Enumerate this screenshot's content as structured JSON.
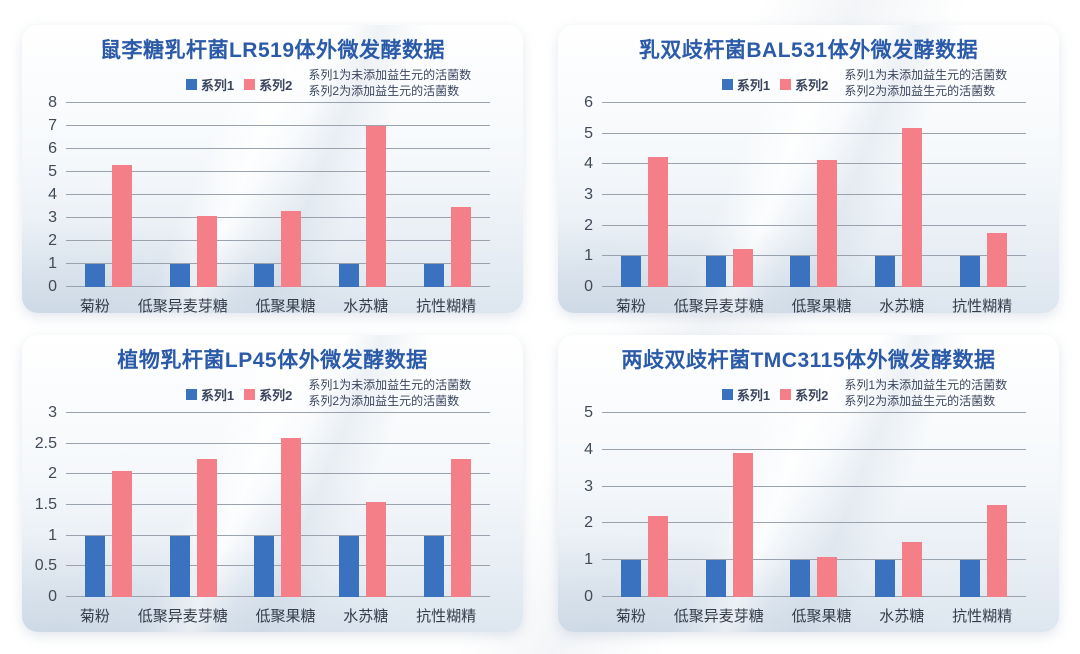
{
  "colors": {
    "series1": "#3b72bf",
    "series2": "#f57f89",
    "title_text": "#2a5aa8",
    "gridline": "#9aa2ad",
    "axis_text": "#424a56",
    "legend_text": "#3b465e",
    "card_bg_bottom": "#dde6ef",
    "page_bg": "#ffffff"
  },
  "chart_data": [
    {
      "type": "bar",
      "title": "鼠李糖乳杆菌LR519体外微发酵数据",
      "categories": [
        "菊粉",
        "低聚异麦芽糖",
        "低聚果糖",
        "水苏糖",
        "抗性糊精"
      ],
      "series": [
        {
          "name": "系列1",
          "values": [
            1,
            1,
            1,
            1,
            1
          ]
        },
        {
          "name": "系列2",
          "values": [
            5.3,
            3.1,
            3.3,
            7,
            3.5
          ]
        }
      ],
      "annotation": [
        "系列1为未添加益生元的活菌数",
        "系列2为添加益生元的活菌数"
      ],
      "xlabel": "",
      "ylabel": "",
      "ylim": [
        0,
        8
      ],
      "ytick_step": 1,
      "grid": true,
      "legend_position": "top"
    },
    {
      "type": "bar",
      "title": "乳双歧杆菌BAL531体外微发酵数据",
      "categories": [
        "菊粉",
        "低聚异麦芽糖",
        "低聚果糖",
        "水苏糖",
        "抗性糊精"
      ],
      "series": [
        {
          "name": "系列1",
          "values": [
            1,
            1,
            1,
            1,
            1
          ]
        },
        {
          "name": "系列2",
          "values": [
            4.25,
            1.25,
            4.15,
            5.2,
            1.75
          ]
        }
      ],
      "annotation": [
        "系列1为未添加益生元的活菌数",
        "系列2为添加益生元的活菌数"
      ],
      "xlabel": "",
      "ylabel": "",
      "ylim": [
        0,
        6
      ],
      "ytick_step": 1,
      "grid": true,
      "legend_position": "top"
    },
    {
      "type": "bar",
      "title": "植物乳杆菌LP45体外微发酵数据",
      "categories": [
        "菊粉",
        "低聚异麦芽糖",
        "低聚果糖",
        "水苏糖",
        "抗性糊精"
      ],
      "series": [
        {
          "name": "系列1",
          "values": [
            1,
            1,
            1,
            1,
            1
          ]
        },
        {
          "name": "系列2",
          "values": [
            2.05,
            2.25,
            2.6,
            1.55,
            2.25
          ]
        }
      ],
      "annotation": [
        "系列1为未添加益生元的活菌数",
        "系列2为添加益生元的活菌数"
      ],
      "xlabel": "",
      "ylabel": "",
      "ylim": [
        0,
        3
      ],
      "ytick_step": 0.5,
      "grid": true,
      "legend_position": "top"
    },
    {
      "type": "bar",
      "title": "两歧双歧杆菌TMC3115体外微发酵数据",
      "categories": [
        "菊粉",
        "低聚异麦芽糖",
        "低聚果糖",
        "水苏糖",
        "抗性糊精"
      ],
      "series": [
        {
          "name": "系列1",
          "values": [
            1,
            1,
            1,
            1,
            1
          ]
        },
        {
          "name": "系列2",
          "values": [
            2.2,
            3.9,
            1.1,
            1.5,
            2.5
          ]
        }
      ],
      "annotation": [
        "系列1为未添加益生元的活菌数",
        "系列2为添加益生元的活菌数"
      ],
      "xlabel": "",
      "ylabel": "",
      "ylim": [
        0,
        5
      ],
      "ytick_step": 1,
      "grid": true,
      "legend_position": "top"
    }
  ]
}
